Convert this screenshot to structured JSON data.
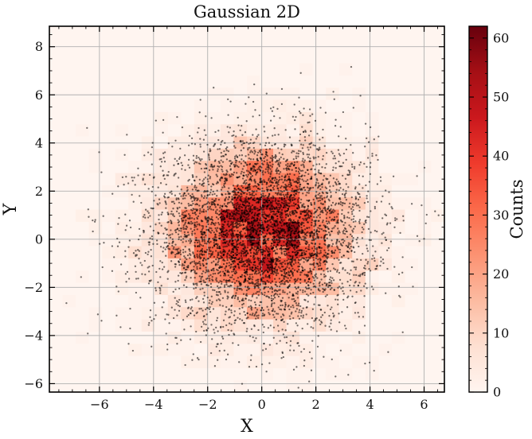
{
  "chart_data": {
    "type": "heatmap",
    "title": "Gaussian 2D",
    "xlabel": "X",
    "ylabel": "Y",
    "xlim": [
      -7.85,
      6.75
    ],
    "ylim": [
      -6.35,
      8.85
    ],
    "x_ticks": [
      -6,
      -4,
      -2,
      0,
      2,
      4,
      6
    ],
    "y_ticks": [
      -6,
      -4,
      -2,
      0,
      2,
      4,
      6,
      8
    ],
    "x_tick_labels": [
      "−6",
      "−4",
      "−2",
      "0",
      "2",
      "4",
      "6"
    ],
    "y_tick_labels": [
      "−6",
      "−4",
      "−2",
      "0",
      "2",
      "4",
      "6",
      "8"
    ],
    "grid": true,
    "colormap": "Reds",
    "colormap_stops": [
      "#fff5f0",
      "#fee0d2",
      "#fcbba1",
      "#fc9272",
      "#fb6a4a",
      "#ef3b2c",
      "#cb181d",
      "#a50f15",
      "#67000d"
    ],
    "histogram": {
      "x_range": [
        -7.85,
        6.75
      ],
      "y_range": [
        -6.35,
        8.85
      ],
      "bins": 30,
      "gaussian_mean": [
        0,
        0.3
      ],
      "gaussian_sigma": 2.0,
      "peak_count": 62
    },
    "scatter": {
      "n_points": 5000,
      "mean": [
        0,
        0.3
      ],
      "std": [
        2.0,
        2.0
      ],
      "color": "#000000",
      "alpha": 0.55
    },
    "colorbar": {
      "label": "Counts",
      "min": 0,
      "max": 62,
      "ticks": [
        0,
        10,
        20,
        30,
        40,
        50,
        60
      ],
      "tick_labels": [
        "0",
        "10",
        "20",
        "30",
        "40",
        "50",
        "60"
      ]
    }
  }
}
